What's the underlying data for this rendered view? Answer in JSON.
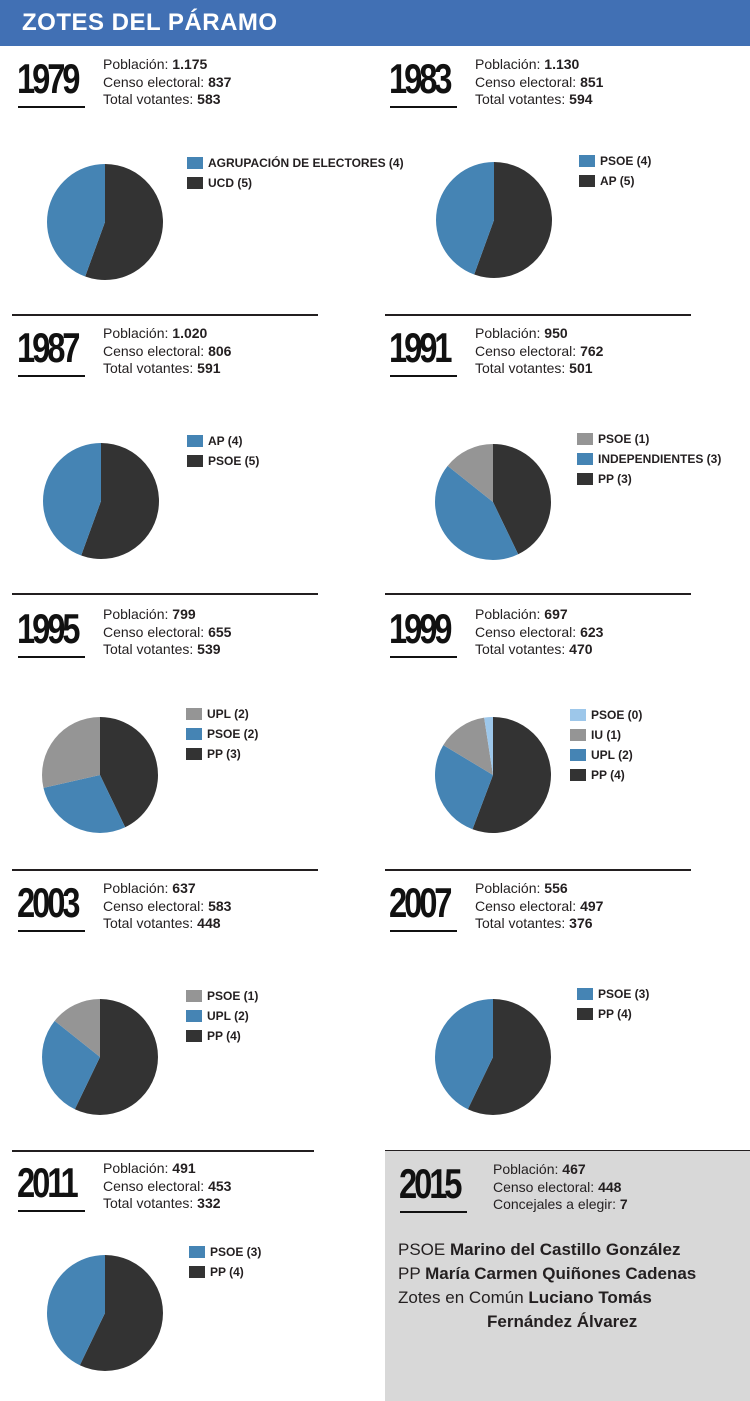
{
  "header": {
    "title": "ZOTES DEL PÁRAMO"
  },
  "labels": {
    "population": "Población:",
    "census": "Censo electoral:",
    "voters": "Total votantes:",
    "councillors": "Concejales a elegir:"
  },
  "colors": {
    "header_bg": "#4170b4",
    "dark": "#333333",
    "blue": "#4584b4",
    "gray": "#959595",
    "light_blue": "#9dc7ea",
    "box_bg": "#d8d8d8"
  },
  "elections": [
    {
      "year": "1979",
      "population": "1.175",
      "census": "837",
      "voters": "583",
      "parties": [
        {
          "label": "AGRUPACIÓN DE ELECTORES (4)",
          "seats": 4,
          "color": "blue"
        },
        {
          "label": "UCD (5)",
          "seats": 5,
          "color": "dark"
        }
      ]
    },
    {
      "year": "1983",
      "population": "1.130",
      "census": "851",
      "voters": "594",
      "parties": [
        {
          "label": "PSOE (4)",
          "seats": 4,
          "color": "blue"
        },
        {
          "label": "AP (5)",
          "seats": 5,
          "color": "dark"
        }
      ]
    },
    {
      "year": "1987",
      "population": "1.020",
      "census": "806",
      "voters": "591",
      "parties": [
        {
          "label": "AP (4)",
          "seats": 4,
          "color": "blue"
        },
        {
          "label": "PSOE (5)",
          "seats": 5,
          "color": "dark"
        }
      ]
    },
    {
      "year": "1991",
      "population": "950",
      "census": "762",
      "voters": "501",
      "parties": [
        {
          "label": "PSOE (1)",
          "seats": 1,
          "color": "gray"
        },
        {
          "label": "INDEPENDIENTES (3)",
          "seats": 3,
          "color": "blue"
        },
        {
          "label": "PP (3)",
          "seats": 3,
          "color": "dark"
        }
      ]
    },
    {
      "year": "1995",
      "population": "799",
      "census": "655",
      "voters": "539",
      "parties": [
        {
          "label": "UPL (2)",
          "seats": 2,
          "color": "gray"
        },
        {
          "label": "PSOE (2)",
          "seats": 2,
          "color": "blue"
        },
        {
          "label": "PP (3)",
          "seats": 3,
          "color": "dark"
        }
      ]
    },
    {
      "year": "1999",
      "population": "697",
      "census": "623",
      "voters": "470",
      "parties": [
        {
          "label": "PSOE (0)",
          "seats": 0,
          "color": "light_blue"
        },
        {
          "label": "IU (1)",
          "seats": 1,
          "color": "gray"
        },
        {
          "label": "UPL (2)",
          "seats": 2,
          "color": "blue"
        },
        {
          "label": "PP (4)",
          "seats": 4,
          "color": "dark"
        }
      ]
    },
    {
      "year": "2003",
      "population": "637",
      "census": "583",
      "voters": "448",
      "parties": [
        {
          "label": "PSOE (1)",
          "seats": 1,
          "color": "gray"
        },
        {
          "label": "UPL (2)",
          "seats": 2,
          "color": "blue"
        },
        {
          "label": "PP (4)",
          "seats": 4,
          "color": "dark"
        }
      ]
    },
    {
      "year": "2007",
      "population": "556",
      "census": "497",
      "voters": "376",
      "parties": [
        {
          "label": "PSOE (3)",
          "seats": 3,
          "color": "blue"
        },
        {
          "label": "PP (4)",
          "seats": 4,
          "color": "dark"
        }
      ]
    },
    {
      "year": "2011",
      "population": "491",
      "census": "453",
      "voters": "332",
      "parties": [
        {
          "label": "PSOE (3)",
          "seats": 3,
          "color": "blue"
        },
        {
          "label": "PP (4)",
          "seats": 4,
          "color": "dark"
        }
      ]
    }
  ],
  "e2015": {
    "year": "2015",
    "population": "467",
    "census": "448",
    "councillors": "7",
    "candidates": [
      {
        "party": "PSOE",
        "name": "Marino del Castillo González"
      },
      {
        "party": "PP",
        "name": "María Carmen Quiñones Cadenas"
      },
      {
        "party": "Zotes en Común",
        "name": "Luciano Tomás",
        "name2": "Fernández Álvarez"
      }
    ]
  },
  "chart_data": {
    "type": "pie",
    "title": "ZOTES DEL PÁRAMO",
    "charts": [
      {
        "year": "1979",
        "labels": [
          "AGRUPACIÓN DE ELECTORES",
          "UCD"
        ],
        "values": [
          4,
          5
        ]
      },
      {
        "year": "1983",
        "labels": [
          "PSOE",
          "AP"
        ],
        "values": [
          4,
          5
        ]
      },
      {
        "year": "1987",
        "labels": [
          "AP",
          "PSOE"
        ],
        "values": [
          4,
          5
        ]
      },
      {
        "year": "1991",
        "labels": [
          "PSOE",
          "INDEPENDIENTES",
          "PP"
        ],
        "values": [
          1,
          3,
          3
        ]
      },
      {
        "year": "1995",
        "labels": [
          "UPL",
          "PSOE",
          "PP"
        ],
        "values": [
          2,
          2,
          3
        ]
      },
      {
        "year": "1999",
        "labels": [
          "PSOE",
          "IU",
          "UPL",
          "PP"
        ],
        "values": [
          0,
          1,
          2,
          4
        ]
      },
      {
        "year": "2003",
        "labels": [
          "PSOE",
          "UPL",
          "PP"
        ],
        "values": [
          1,
          2,
          4
        ]
      },
      {
        "year": "2007",
        "labels": [
          "PSOE",
          "PP"
        ],
        "values": [
          3,
          4
        ]
      },
      {
        "year": "2011",
        "labels": [
          "PSOE",
          "PP"
        ],
        "values": [
          3,
          4
        ]
      }
    ]
  }
}
